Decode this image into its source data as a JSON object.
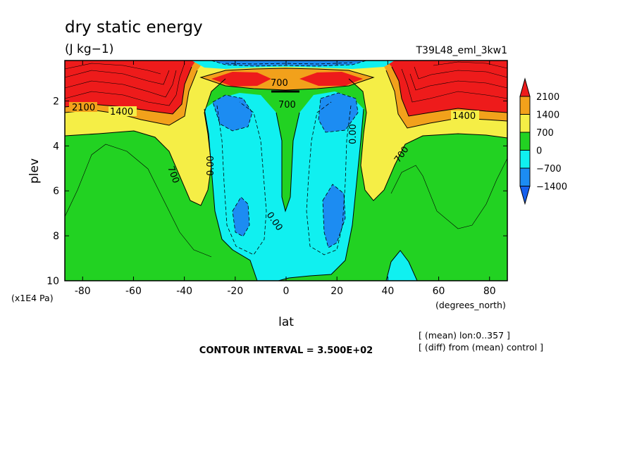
{
  "header": {
    "title": "dry static energy",
    "units": "(J kg−1)",
    "run_id": "T39L48_eml_3kw1"
  },
  "footer": {
    "contour_interval": "CONTOUR INTERVAL = 3.500E+02",
    "note_mean": "[ (mean) lon:0..357 ]",
    "note_diff": "[ (diff) from (mean) control ]"
  },
  "chart_data": {
    "type": "contour",
    "title": "dry static energy",
    "units": "(J kg−1)",
    "xlabel": "lat",
    "xunits": "(degrees_north)",
    "ylabel": "plev",
    "yunits": "(x1E4 Pa)",
    "xlim": [
      -87,
      87
    ],
    "ylim": [
      10,
      0.2
    ],
    "xticks": [
      -80,
      -60,
      -40,
      -20,
      0,
      20,
      40,
      60,
      80
    ],
    "yticks": [
      2,
      4,
      6,
      8,
      10
    ],
    "contour_interval": 350,
    "colorbar": {
      "levels": [
        2100,
        1400,
        700,
        0,
        -700,
        -1400
      ],
      "colors": [
        "#ee1b1b",
        "#f2a11b",
        "#f5ee46",
        "#22d222",
        "#10f0f0",
        "#1c8cf2",
        "#1660ee"
      ]
    },
    "contour_labels": [
      "2100",
      "1400",
      "700",
      "0.00"
    ],
    "description_fields": "pressure-latitude cross section, zonal mean difference"
  }
}
